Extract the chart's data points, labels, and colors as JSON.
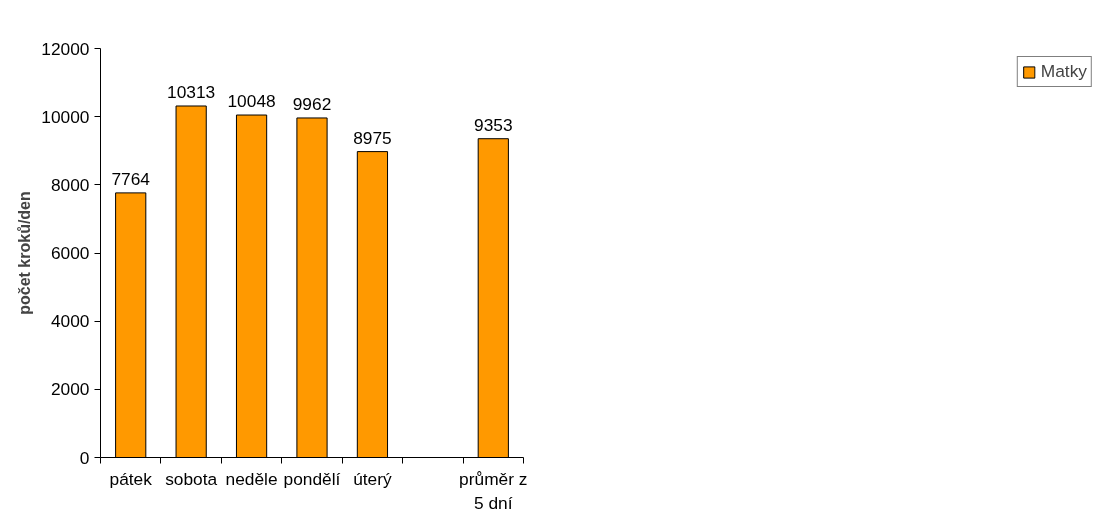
{
  "chart_data": {
    "type": "bar",
    "ylabel": "počet kroků/den",
    "categories": [
      "pátek",
      "sobota",
      "neděle",
      "pondělí",
      "úterý",
      null,
      "průměr z 5 dní"
    ],
    "series": [
      {
        "name": "Matky",
        "color": "#ff9900",
        "values": [
          7764,
          10313,
          10048,
          9962,
          8975,
          null,
          9353
        ]
      }
    ],
    "ylim": [
      0,
      12000
    ],
    "yticks": [
      0,
      2000,
      4000,
      6000,
      8000,
      10000,
      12000
    ],
    "data_labels": true,
    "grid": false,
    "legend": "right"
  }
}
